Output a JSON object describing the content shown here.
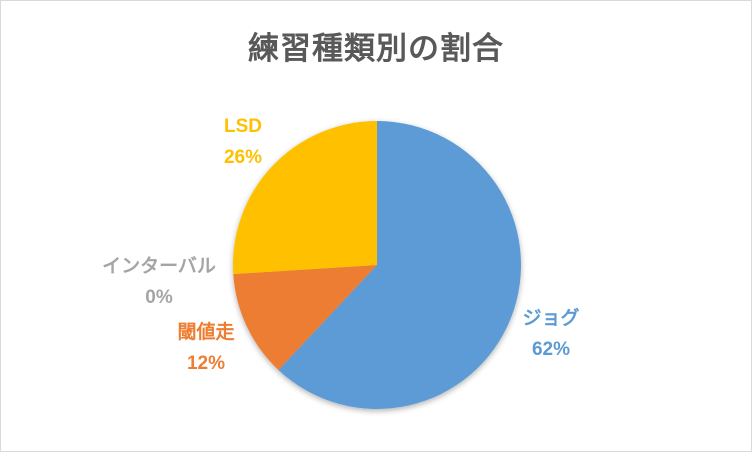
{
  "frame": {
    "background": "#ffffff",
    "border_color": "#d9d9d9"
  },
  "title": {
    "text": "練習種類別の割合",
    "color": "#595959"
  },
  "chart_data": {
    "type": "pie",
    "title": "練習種類別の割合",
    "start_angle_deg": 0,
    "direction": "clockwise",
    "legend": "none",
    "labels_position": "outside-end",
    "label_format": "name + percent",
    "slices": [
      {
        "label": "ジョグ",
        "value": 62,
        "percent_label": "62%",
        "color": "#5B9BD5"
      },
      {
        "label": "閾値走",
        "value": 12,
        "percent_label": "12%",
        "color": "#ED7D31"
      },
      {
        "label": "インターバル",
        "value": 0,
        "percent_label": "0%",
        "color": "#A5A5A5"
      },
      {
        "label": "LSD",
        "value": 26,
        "percent_label": "26%",
        "color": "#FFC000"
      }
    ]
  }
}
